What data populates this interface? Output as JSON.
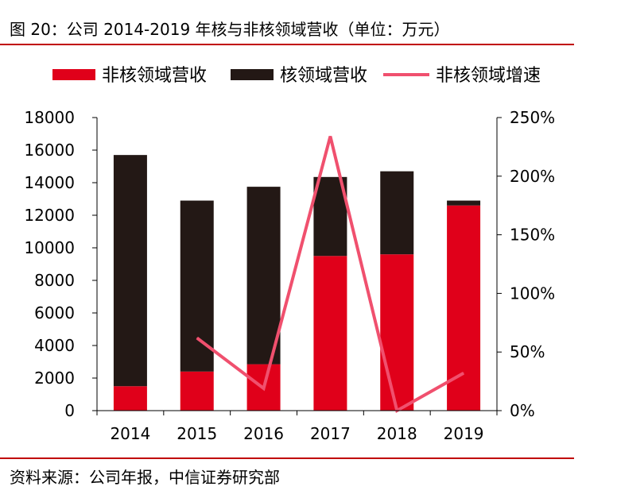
{
  "title": "图 20：公司 2014-2019 年核与非核领域营收（单位：万元）",
  "source": "资料来源：公司年报，中信证券研究部",
  "colors": {
    "noncore": "#e0001a",
    "core": "#231815",
    "growth": "#f0506e",
    "rule": "#c00000"
  },
  "chart_data": {
    "type": "bar",
    "stacked": true,
    "categories": [
      "2014",
      "2015",
      "2016",
      "2017",
      "2018",
      "2019"
    ],
    "series": [
      {
        "name": "非核领域营收",
        "type": "bar",
        "axis": "left",
        "values": [
          1500,
          2400,
          2850,
          9500,
          9600,
          12600
        ]
      },
      {
        "name": "核领域营收",
        "type": "bar",
        "axis": "left",
        "values": [
          14200,
          10500,
          10900,
          4850,
          5100,
          300
        ]
      },
      {
        "name": "非核领域增速",
        "type": "line",
        "axis": "right",
        "values": [
          null,
          62,
          19,
          234,
          0,
          32
        ]
      }
    ],
    "y_left": {
      "min": 0,
      "max": 18000,
      "step": 2000,
      "ticks": [
        "0",
        "2000",
        "4000",
        "6000",
        "8000",
        "10000",
        "12000",
        "14000",
        "16000",
        "18000"
      ]
    },
    "y_right": {
      "min": 0,
      "max": 250,
      "step": 50,
      "ticks": [
        "0%",
        "50%",
        "100%",
        "150%",
        "200%",
        "250%"
      ]
    },
    "legend_position": "top",
    "grid": false
  }
}
